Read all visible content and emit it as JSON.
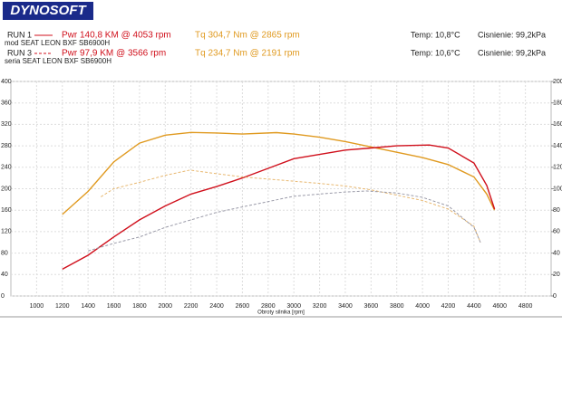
{
  "chart_data": {
    "type": "line",
    "logo": "DYNOSOFT",
    "runs": [
      {
        "label": "RUN 1",
        "power": "Pwr  140,8 KM @ 4053 rpm",
        "torque": "Tq 304,7 Nm @ 2865 rpm",
        "temp": "Temp: 10,8°C",
        "pressure": "Cisnienie: 99,2kPa",
        "car": "mod SEAT LEON BXF SB6900H",
        "color": "#d0101c"
      },
      {
        "label": "RUN 3",
        "power": "Pwr  97,9 KM @ 3566 rpm",
        "torque": "Tq 234,7 Nm @ 2191 rpm",
        "temp": "Temp: 10,6°C",
        "pressure": "Cisnienie: 99,2kPa",
        "car": "seria SEAT LEON BXF SB6900H",
        "color": "#d0101c"
      }
    ],
    "torque_color": "#e09a20",
    "x_label": "Obroty silnika [rpm]",
    "xlim": [
      800,
      5000
    ],
    "xticks": [
      1000,
      1200,
      1400,
      1600,
      1800,
      2000,
      2200,
      2400,
      2600,
      2800,
      3000,
      3200,
      3400,
      3600,
      3800,
      4000,
      4200,
      4400,
      4600,
      4800
    ],
    "ylim": [
      0,
      400
    ],
    "yticks": [
      0,
      40,
      80,
      120,
      160,
      200,
      240,
      280,
      320,
      360,
      400
    ],
    "y2lim": [
      0,
      200
    ],
    "y2ticks": [
      0,
      20,
      40,
      60,
      80,
      100,
      120,
      140,
      160,
      180,
      200
    ],
    "grid": true,
    "series": [
      {
        "color": "#e09a20",
        "line_style": "solid",
        "axis": "y",
        "x": [
          1200,
          1400,
          1600,
          1800,
          2000,
          2200,
          2400,
          2600,
          2865,
          3000,
          3200,
          3400,
          3600,
          3800,
          4000,
          4200,
          4400,
          4500,
          4560
        ],
        "values": [
          152,
          195,
          250,
          285,
          300,
          305,
          304,
          302,
          304.7,
          302,
          296,
          288,
          278,
          268,
          258,
          245,
          222,
          190,
          160
        ]
      },
      {
        "color": "#d0101c",
        "line_style": "solid",
        "axis": "y2",
        "x": [
          1200,
          1400,
          1600,
          1800,
          2000,
          2200,
          2400,
          2600,
          2800,
          3000,
          3200,
          3400,
          3600,
          3800,
          4053,
          4200,
          4400,
          4500,
          4560
        ],
        "values": [
          25,
          38,
          55,
          71,
          84,
          95,
          102,
          110,
          119,
          128,
          132,
          136,
          138,
          140,
          140.8,
          138,
          124,
          103,
          81
        ]
      },
      {
        "color": "#e8b870",
        "line_style": "dashed",
        "axis": "y",
        "x": [
          1500,
          1600,
          1800,
          2000,
          2191,
          2400,
          2600,
          2800,
          3000,
          3200,
          3400,
          3600,
          3800,
          4000,
          4200,
          4400,
          4450
        ],
        "values": [
          185,
          200,
          212,
          225,
          234.7,
          228,
          222,
          218,
          214,
          210,
          205,
          198,
          188,
          178,
          162,
          130,
          100
        ]
      },
      {
        "color": "#9a9aa8",
        "line_style": "dashed",
        "axis": "y2",
        "x": [
          1400,
          1600,
          1800,
          2000,
          2200,
          2400,
          2600,
          2800,
          3000,
          3200,
          3400,
          3566,
          3800,
          4000,
          4200,
          4400,
          4450
        ],
        "values": [
          42,
          49,
          55,
          64,
          71,
          78,
          83,
          88,
          93,
          95,
          97,
          97.9,
          96,
          92,
          84,
          64,
          50
        ]
      }
    ]
  }
}
